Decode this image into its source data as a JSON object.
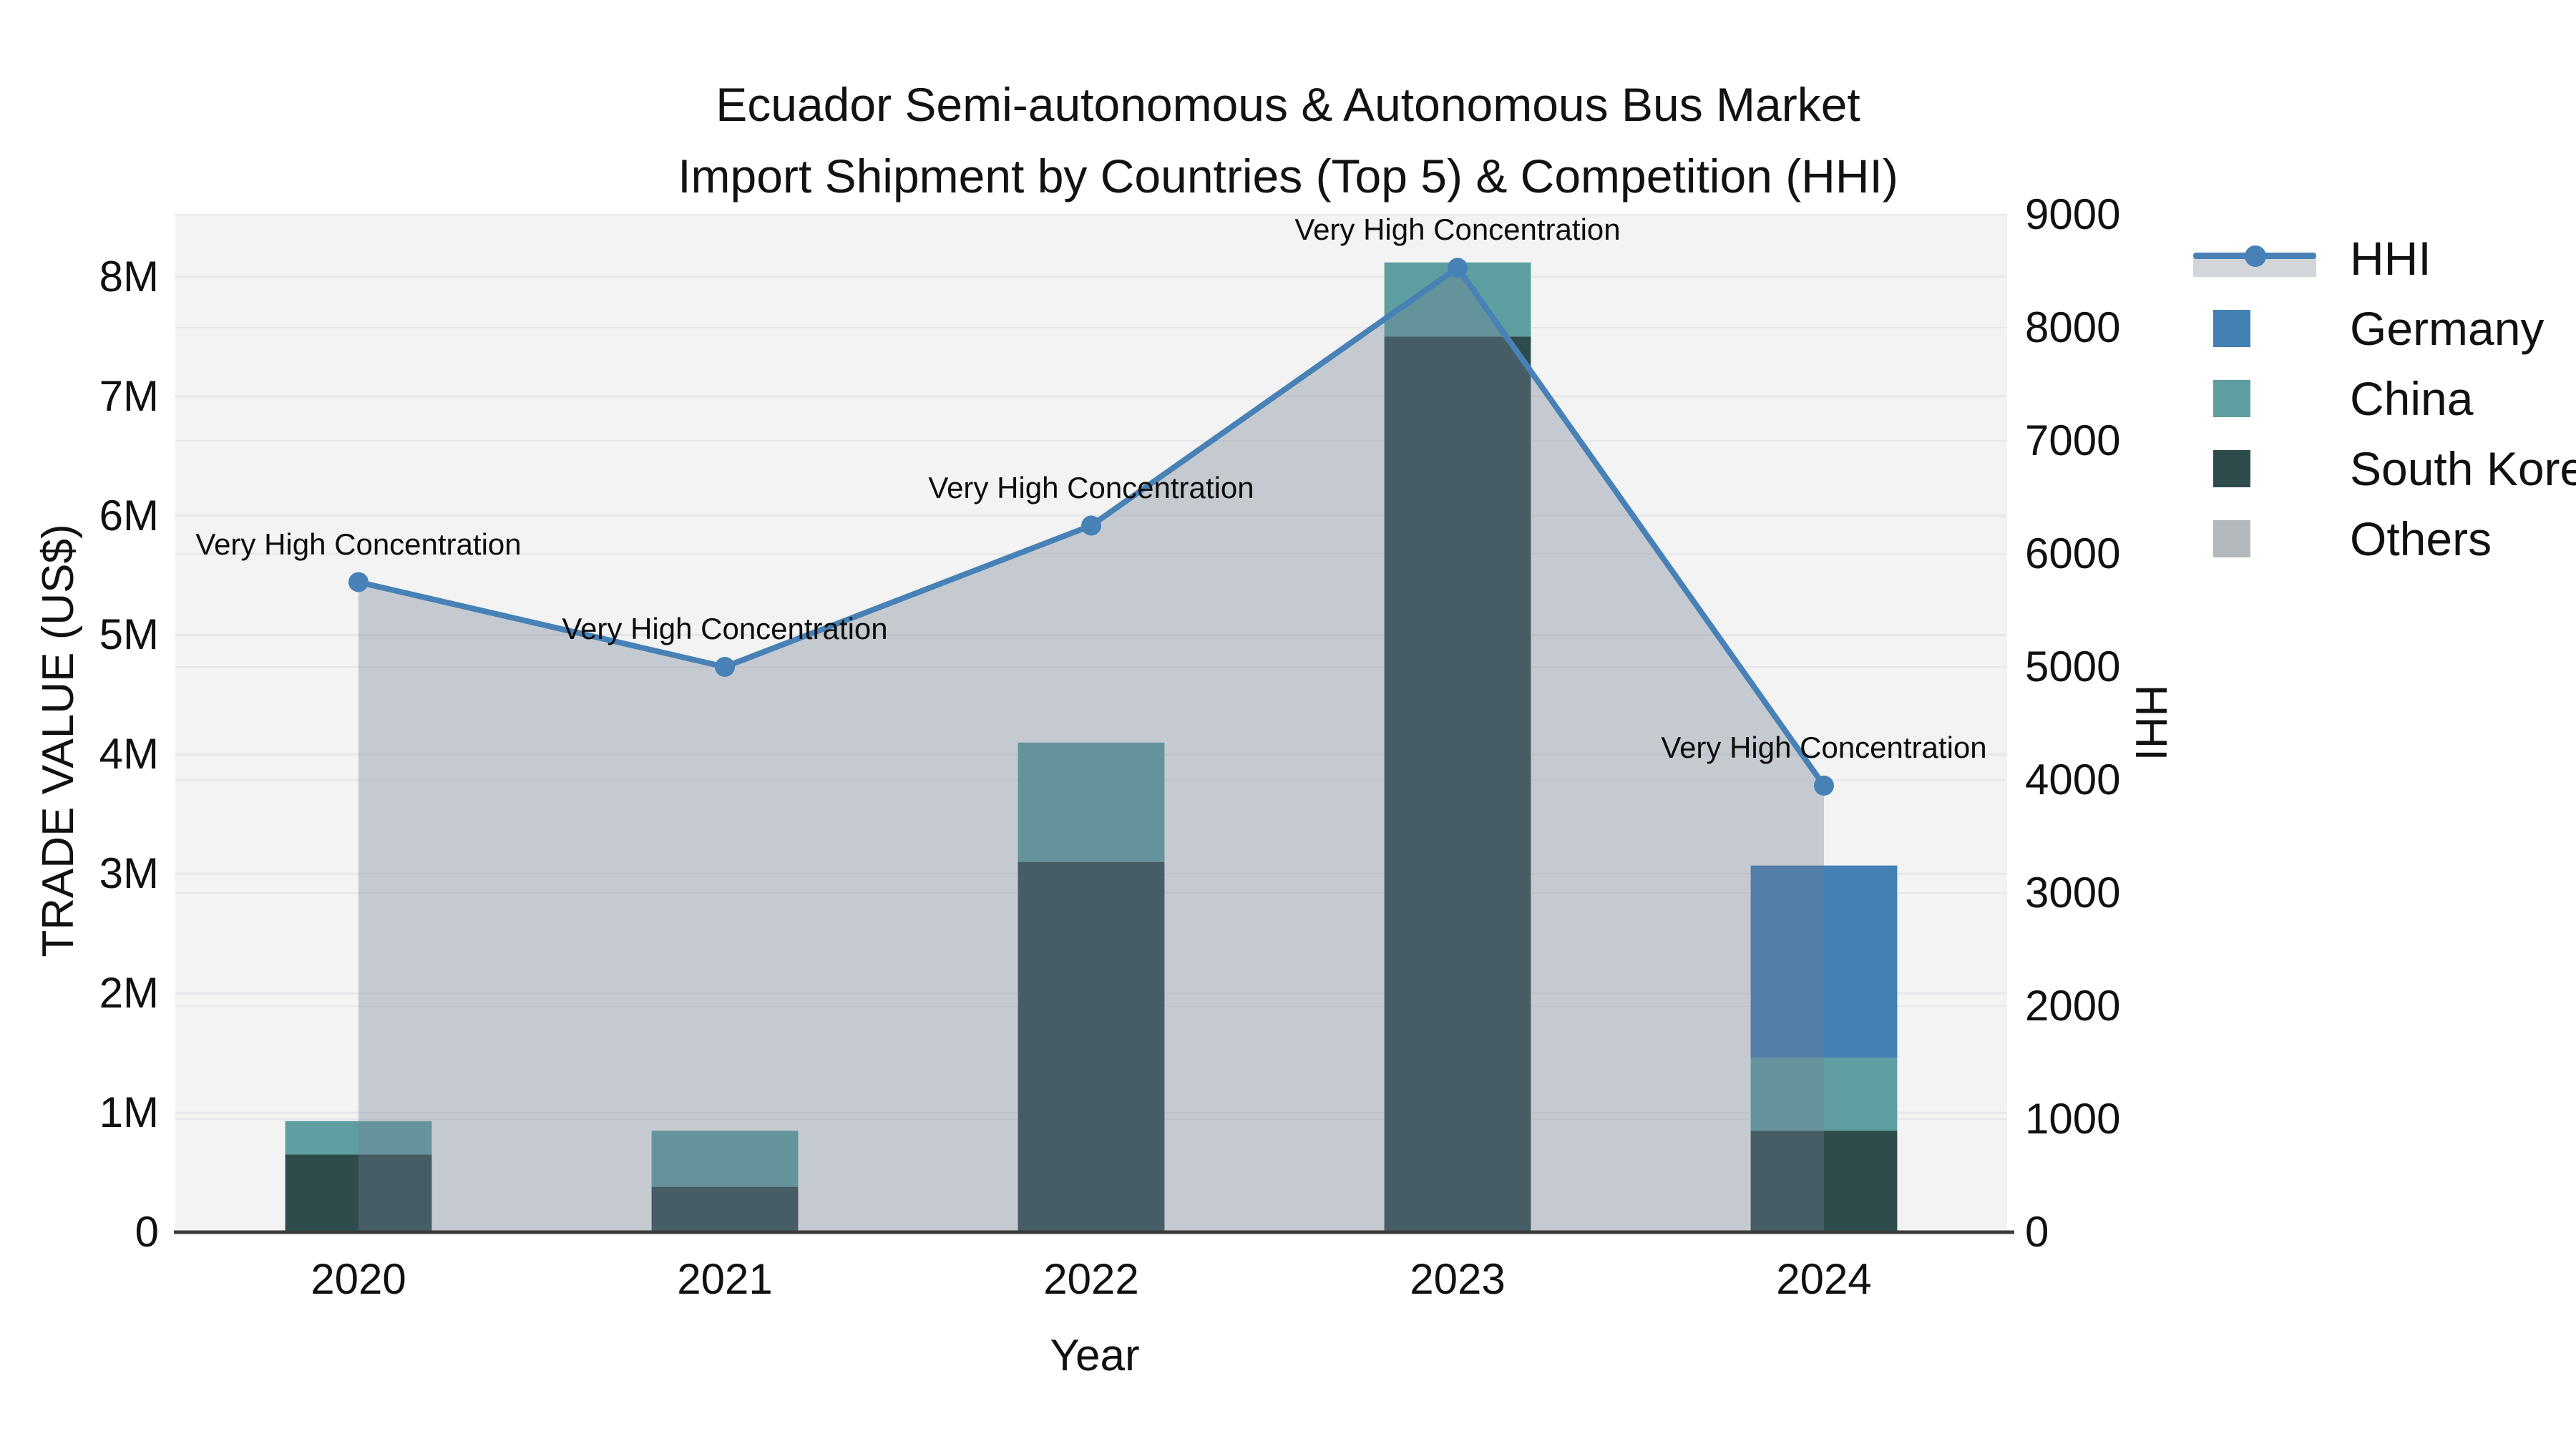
{
  "title": {
    "line1": "Ecuador Semi-autonomous & Autonomous Bus Market",
    "line2": "Import Shipment by Countries (Top 5) & Competition (HHI)"
  },
  "chart_data": {
    "type": "combo-stacked-bar-line",
    "categories": [
      "2020",
      "2021",
      "2022",
      "2023",
      "2024"
    ],
    "bar_series": [
      {
        "name": "Germany",
        "color": "#4380b4",
        "values": [
          0,
          0,
          0,
          0,
          1610000
        ]
      },
      {
        "name": "China",
        "color": "#5f9ea0",
        "values": [
          280000,
          470000,
          1000000,
          620000,
          610000
        ]
      },
      {
        "name": "South Korea",
        "color": "#2e4c4c",
        "values": [
          650000,
          380000,
          3100000,
          7500000,
          850000
        ]
      },
      {
        "name": "Others",
        "color": "#b3b8bc",
        "values": [
          0,
          0,
          0,
          0,
          0
        ]
      }
    ],
    "line_series": {
      "name": "HHI",
      "color": "#4781b6",
      "area_fill": "rgba(115,125,148,0.35)",
      "axis": "right",
      "values": [
        5750,
        5000,
        6250,
        8530,
        3950
      ]
    },
    "annotations": [
      {
        "category": "2020",
        "text": "Very High Concentration"
      },
      {
        "category": "2021",
        "text": "Very High Concentration"
      },
      {
        "category": "2022",
        "text": "Very High Concentration"
      },
      {
        "category": "2023",
        "text": "Very High Concentration"
      },
      {
        "category": "2024",
        "text": "Very High Concentration"
      }
    ],
    "x_axis": {
      "title": "Year"
    },
    "y_left": {
      "title": "TRADE VALUE (US$)",
      "ticks": [
        "0",
        "1M",
        "2M",
        "3M",
        "4M",
        "5M",
        "6M",
        "7M",
        "8M"
      ],
      "tick_values": [
        0,
        1000000,
        2000000,
        3000000,
        4000000,
        5000000,
        6000000,
        7000000,
        8000000
      ],
      "max": 8520000
    },
    "y_right": {
      "title": "HHI",
      "ticks": [
        "0",
        "1000",
        "2000",
        "3000",
        "4000",
        "5000",
        "6000",
        "7000",
        "8000",
        "9000"
      ],
      "tick_values": [
        0,
        1000,
        2000,
        3000,
        4000,
        5000,
        6000,
        7000,
        8000,
        9000
      ],
      "max": 9000
    },
    "colors": {
      "plot_bg": "#f2f3f2",
      "grid": "#e5e7ea",
      "axis_line": "#3c3c3c"
    }
  }
}
